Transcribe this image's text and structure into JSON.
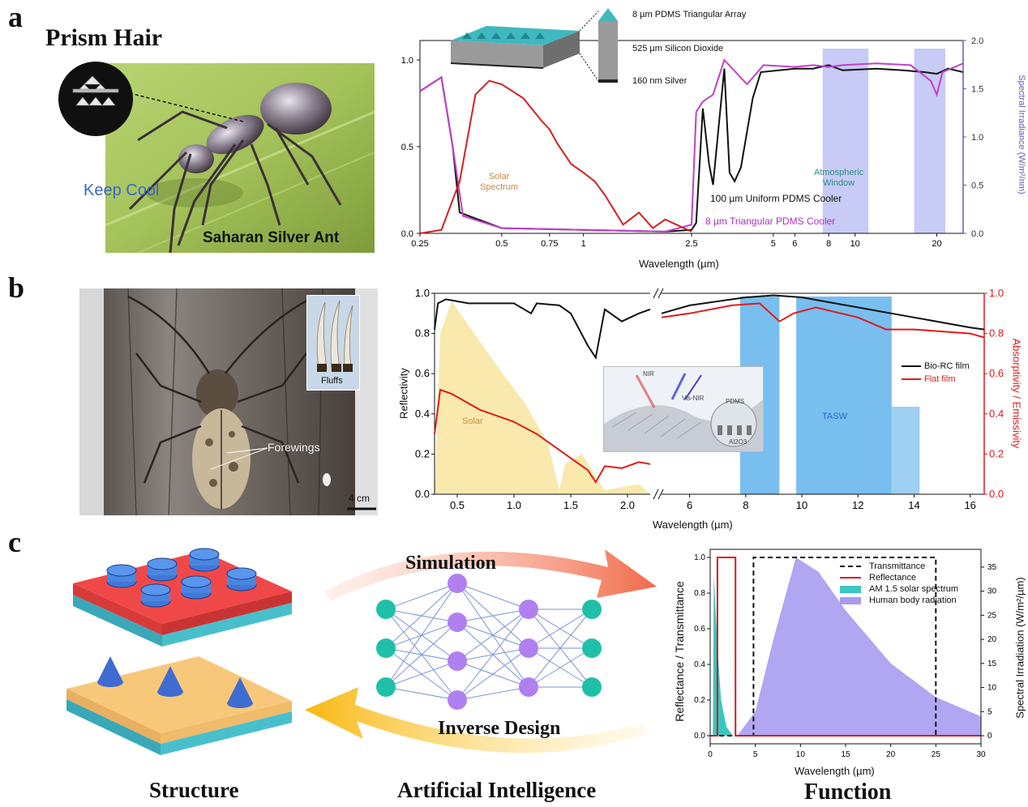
{
  "panel_a": {
    "letter": "a",
    "title": "Prism Hair",
    "keep_cool": "Keep Cool",
    "ant_name": "Saharan Silver Ant",
    "layers": {
      "top": "8 µm PDMS Triangular Array",
      "middle": "525 µm Silicon Dioxide",
      "bottom": "160 nm Silver"
    },
    "annotations": {
      "solar": [
        "Solar",
        "Spectrum"
      ],
      "window": [
        "Atmospheric",
        "Window"
      ],
      "uniform": "100 µm Uniform PDMS Cooler",
      "triangular": "8 µm Triangular PDMS Cooler"
    },
    "colors": {
      "solar": "#d42020",
      "uniform": "#111111",
      "triangular": "#c040c8",
      "window": "#9aa0ee"
    }
  },
  "panel_b": {
    "letter": "b",
    "fluffs": "Fluffs",
    "forewings": "Forewings",
    "scale": "4 cm",
    "legend": [
      "Bio-RC film",
      "Flat film"
    ],
    "solar": "Solar",
    "tasw": "TASW",
    "inset": {
      "nir": "NIR",
      "vis_nir": "Vis-NIR",
      "pdms": "PDMS",
      "al2o3": "Al2O3"
    },
    "colors": {
      "bio": "#111111",
      "flat": "#e01a1a",
      "solar": "#f7e08a",
      "tasw": "#3fa2e8"
    }
  },
  "panel_c": {
    "letter": "c",
    "simulation": "Simulation",
    "inverse_design": "Inverse Design",
    "structure": "Structure",
    "ai": "Artificial Intelligence",
    "function": "Function",
    "legend": [
      "Transmittance",
      "Reflectance",
      "AM 1.5 solar spectrum",
      "Human body radiation"
    ],
    "colors": {
      "reflectance": "#d81a1a",
      "am15": "#38c8c0",
      "human": "#a89cf0",
      "node_green": "#20c0a8",
      "node_purple": "#b080f0"
    }
  },
  "chart_data": [
    {
      "type": "line",
      "xlabel": "Wavelength (µm)",
      "ylabel": "",
      "y2label": "Spectral Irradiance (W/m²/nm)",
      "xscale": "log",
      "xlim": [
        0.25,
        25
      ],
      "ylim": [
        0,
        1.0
      ],
      "y2lim": [
        0,
        2.0
      ],
      "xticks": [
        "0.25",
        "0.5",
        "0.75",
        "1",
        "2.5",
        "5",
        "6",
        "8",
        "10",
        "20"
      ],
      "yticks": [
        "0.0",
        "0.5",
        "1.0"
      ],
      "y2ticks": [
        "0.0",
        "0.5",
        "1.0",
        "1.5",
        "2.0"
      ],
      "series": [
        {
          "name": "100 µm Uniform PDMS Cooler",
          "x": [
            0.25,
            0.3,
            0.33,
            0.35,
            0.5,
            1,
            2,
            2.5,
            2.6,
            2.75,
            2.9,
            3.0,
            3.3,
            3.45,
            3.6,
            3.8,
            4.2,
            4.5,
            6,
            7,
            8,
            9,
            12,
            15,
            18,
            20,
            22,
            25
          ],
          "y": [
            0.82,
            0.9,
            0.5,
            0.12,
            0.03,
            0.02,
            0.01,
            0.02,
            0.06,
            0.72,
            0.4,
            0.28,
            0.95,
            0.35,
            0.3,
            0.38,
            0.78,
            0.93,
            0.95,
            0.95,
            0.97,
            0.94,
            0.95,
            0.94,
            0.93,
            0.92,
            0.95,
            0.93
          ]
        },
        {
          "name": "8 µm Triangular PDMS Cooler",
          "x": [
            0.25,
            0.3,
            0.33,
            0.36,
            0.5,
            1,
            2,
            2.5,
            2.6,
            2.75,
            3,
            3.3,
            4,
            4.6,
            6,
            7,
            8,
            9,
            12,
            16,
            19,
            20,
            21,
            25
          ],
          "y": [
            0.82,
            0.9,
            0.5,
            0.1,
            0.03,
            0.02,
            0.01,
            0.05,
            0.7,
            0.76,
            0.8,
            1.0,
            0.86,
            0.97,
            0.96,
            0.97,
            0.96,
            0.97,
            0.98,
            0.97,
            0.88,
            0.8,
            0.93,
            0.98
          ]
        },
        {
          "name": "Solar Spectrum",
          "x": [
            0.25,
            0.3,
            0.35,
            0.4,
            0.45,
            0.5,
            0.6,
            0.7,
            0.75,
            0.8,
            0.9,
            1.0,
            1.1,
            1.2,
            1.4,
            1.6,
            1.8,
            2.0,
            2.2,
            2.5
          ],
          "y": [
            0.0,
            0.02,
            0.3,
            0.8,
            0.88,
            0.86,
            0.78,
            0.65,
            0.6,
            0.52,
            0.4,
            0.35,
            0.3,
            0.22,
            0.05,
            0.12,
            0.03,
            0.08,
            0.05,
            0.01
          ]
        }
      ]
    },
    {
      "type": "line",
      "xlabel": "Wavelength (µm)",
      "ylabel": "Reflectivity",
      "y2label": "Absorptivity / Emissivity",
      "ylim": [
        0,
        1.0
      ],
      "y2lim": [
        0,
        1.0
      ],
      "xticks_left": [
        "0.5",
        "1.0",
        "1.5",
        "2.0"
      ],
      "xticks_right": [
        "6",
        "8",
        "10",
        "12",
        "14",
        "16"
      ],
      "yticks": [
        "0.0",
        "0.2",
        "0.4",
        "0.6",
        "0.8",
        "1.0"
      ],
      "y2ticks": [
        "0.0",
        "0.2",
        "0.4",
        "0.6",
        "0.8",
        "1.0"
      ],
      "series": [
        {
          "name": "Bio-RC film",
          "x": [
            0.3,
            0.33,
            0.4,
            0.6,
            1.0,
            1.15,
            1.2,
            1.4,
            1.5,
            1.65,
            1.72,
            1.8,
            1.95,
            2.1,
            2.2,
            5,
            6,
            8,
            9,
            10,
            12,
            14,
            16,
            16.5
          ],
          "y": [
            0.82,
            0.95,
            0.97,
            0.95,
            0.95,
            0.9,
            0.95,
            0.94,
            0.9,
            0.74,
            0.68,
            0.92,
            0.86,
            0.9,
            0.92,
            0.9,
            0.94,
            0.98,
            0.99,
            0.98,
            0.93,
            0.88,
            0.83,
            0.82
          ]
        },
        {
          "name": "Flat film",
          "x": [
            0.3,
            0.35,
            0.45,
            0.7,
            1.0,
            1.2,
            1.4,
            1.5,
            1.65,
            1.72,
            1.8,
            1.95,
            2.1,
            2.2,
            5,
            6,
            7.5,
            8.5,
            9.2,
            9.7,
            10.5,
            12,
            13,
            14,
            16,
            16.5
          ],
          "y": [
            0.3,
            0.52,
            0.5,
            0.42,
            0.36,
            0.3,
            0.22,
            0.18,
            0.12,
            0.06,
            0.14,
            0.13,
            0.16,
            0.15,
            0.88,
            0.9,
            0.94,
            0.95,
            0.86,
            0.9,
            0.93,
            0.88,
            0.82,
            0.82,
            0.8,
            0.78
          ]
        }
      ]
    },
    {
      "type": "line",
      "xlabel": "Wavelength (µm)",
      "ylabel": "Reflectance / Transmittance",
      "y2label": "Spectral Irradiation (W/m²/µm)",
      "xlim": [
        0,
        30
      ],
      "ylim": [
        0,
        1.0
      ],
      "y2lim": [
        0,
        37
      ],
      "xticks": [
        "0",
        "5",
        "10",
        "15",
        "20",
        "25",
        "30"
      ],
      "yticks": [
        "0.0",
        "0.2",
        "0.4",
        "0.6",
        "0.8",
        "1.0"
      ],
      "y2ticks": [
        "0",
        "5",
        "10",
        "15",
        "20",
        "25",
        "30",
        "35"
      ],
      "series": [
        {
          "name": "Transmittance",
          "x": [
            1,
            4.8,
            4.8,
            25,
            25,
            30
          ],
          "y": [
            0,
            0,
            1,
            1,
            0,
            0
          ]
        },
        {
          "name": "Reflectance",
          "x": [
            0,
            0.8,
            0.8,
            2.8,
            2.8,
            30
          ],
          "y": [
            0,
            0,
            1,
            1,
            0,
            0
          ]
        },
        {
          "name": "AM 1.5 solar spectrum",
          "x": [
            0.3,
            0.4,
            0.5,
            0.8,
            1.2,
            1.8,
            2.5
          ],
          "y": [
            0,
            0.9,
            0.8,
            0.5,
            0.2,
            0.05,
            0
          ]
        },
        {
          "name": "Human body radiation",
          "x": [
            3,
            5,
            7,
            9.5,
            12,
            15,
            20,
            25,
            30
          ],
          "y": [
            0,
            5,
            20,
            37,
            34,
            26,
            15,
            8,
            4
          ]
        }
      ]
    }
  ]
}
